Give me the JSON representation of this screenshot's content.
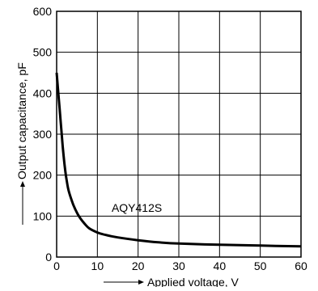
{
  "chart_data": {
    "type": "line",
    "title": "",
    "xlabel": "Applied voltage, V",
    "ylabel": "Output capacitance, pF",
    "xlim": [
      0,
      60
    ],
    "ylim": [
      0,
      600
    ],
    "x_ticks": [
      "0",
      "10",
      "20",
      "30",
      "40",
      "50",
      "60"
    ],
    "y_ticks": [
      "0",
      "100",
      "200",
      "300",
      "400",
      "500",
      "600"
    ],
    "grid": true,
    "legend": "none",
    "annotations": [
      {
        "text": "AQY412S",
        "x": 13.5,
        "y": 120
      }
    ],
    "series": [
      {
        "name": "AQY412S",
        "x": [
          0,
          0.5,
          1,
          1.5,
          2,
          2.5,
          3,
          4,
          5,
          6,
          7,
          8,
          10,
          12,
          15,
          20,
          25,
          30,
          40,
          50,
          60
        ],
        "y": [
          450,
          390,
          330,
          270,
          220,
          185,
          160,
          130,
          108,
          92,
          80,
          70,
          60,
          54,
          48,
          41,
          36,
          33,
          30,
          28,
          26
        ]
      }
    ]
  }
}
